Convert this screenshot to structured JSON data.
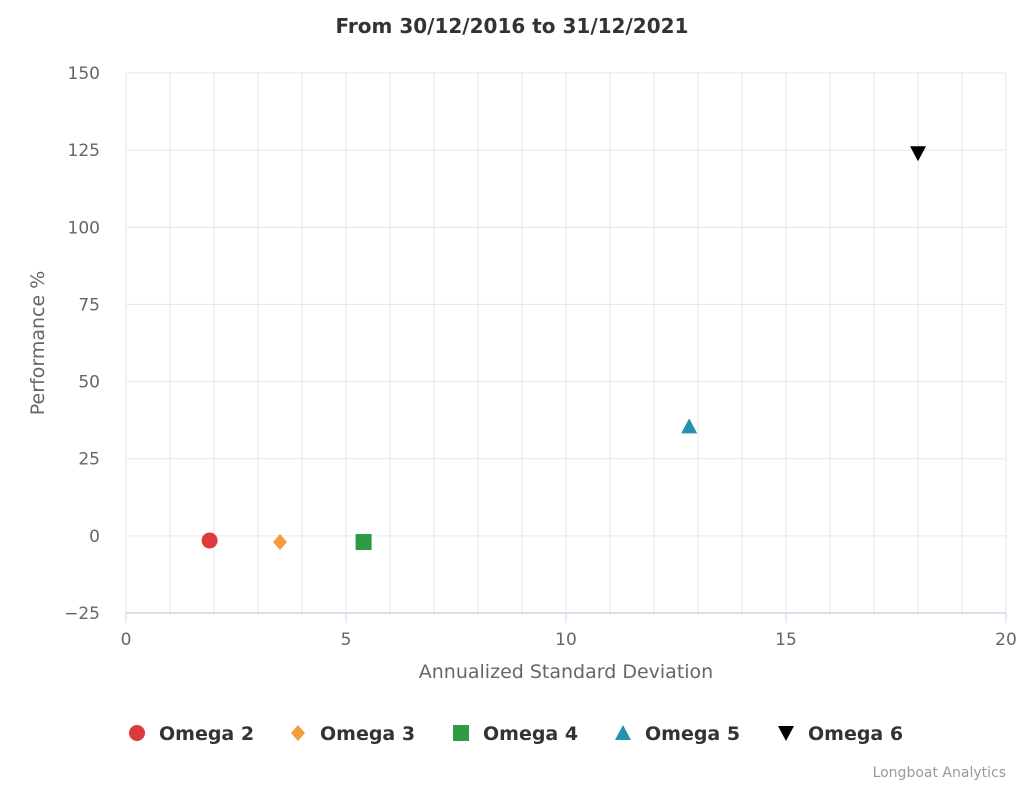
{
  "chart_data": {
    "type": "scatter",
    "title": "From 30/12/2016 to 31/12/2021",
    "xlabel": "Annualized Standard Deviation",
    "ylabel": "Performance %",
    "xlim": [
      0,
      20
    ],
    "ylim": [
      -25,
      150
    ],
    "x_ticks": [
      0,
      5,
      10,
      15,
      20
    ],
    "y_ticks": [
      -25,
      0,
      25,
      50,
      75,
      100,
      125,
      150
    ],
    "x_tick_labels": [
      "0",
      "5",
      "10",
      "15",
      "20"
    ],
    "y_tick_labels": [
      "−25",
      "0",
      "25",
      "50",
      "75",
      "100",
      "125",
      "150"
    ],
    "grid": true,
    "legend_position": "bottom",
    "series": [
      {
        "name": "Omega 2",
        "marker": "circle",
        "color": "#dc3b3b",
        "points": [
          {
            "x": 1.9,
            "y": -1.5
          }
        ]
      },
      {
        "name": "Omega 3",
        "marker": "diamond",
        "color": "#f69b3c",
        "points": [
          {
            "x": 3.5,
            "y": -2.0
          }
        ]
      },
      {
        "name": "Omega 4",
        "marker": "square",
        "color": "#2e9a44",
        "points": [
          {
            "x": 5.4,
            "y": -2.0
          }
        ]
      },
      {
        "name": "Omega 5",
        "marker": "triangle",
        "color": "#2592ad",
        "points": [
          {
            "x": 12.8,
            "y": 35.5
          }
        ]
      },
      {
        "name": "Omega 6",
        "marker": "triangle-down",
        "color": "#000000",
        "points": [
          {
            "x": 18.0,
            "y": 124.0
          }
        ]
      }
    ],
    "credits": "Longboat Analytics"
  }
}
